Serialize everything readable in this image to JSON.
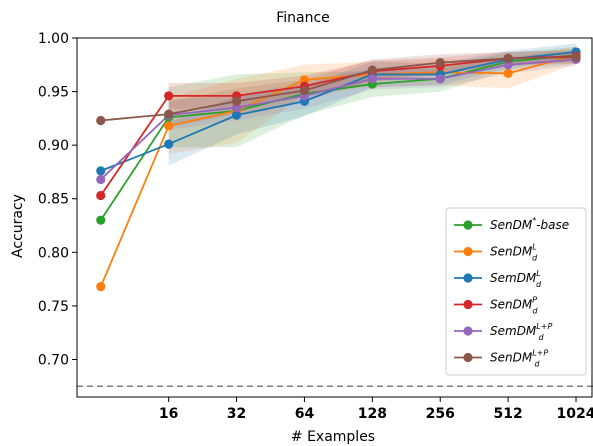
{
  "chart_data": {
    "type": "line",
    "title": "Finance",
    "xlabel": "# Examples",
    "ylabel": "Accuracy",
    "x_scale": "log2",
    "x_ticks": [
      16,
      32,
      64,
      128,
      256,
      512,
      1024
    ],
    "x_tick_labels": [
      "16",
      "32",
      "64",
      "128",
      "256",
      "512",
      "1024"
    ],
    "ylim": [
      0.665,
      1.0
    ],
    "y_ticks": [
      0.7,
      0.75,
      0.8,
      0.85,
      0.9,
      0.95,
      1.0
    ],
    "y_tick_labels": [
      "0.70",
      "0.75",
      "0.80",
      "0.85",
      "0.90",
      "0.95",
      "1.00"
    ],
    "baseline": 0.675,
    "legend_position": "bottom-right",
    "grid": false,
    "x": [
      8,
      16,
      32,
      64,
      128,
      256,
      512,
      1024
    ],
    "series": [
      {
        "name": "SenDM*-base",
        "legend_main": "SenDM",
        "legend_sup": "*",
        "legend_sub": "",
        "legend_tail": "-base",
        "color": "#2ca02c",
        "values": [
          0.83,
          0.926,
          0.932,
          0.948,
          0.957,
          0.962,
          0.978,
          0.984
        ],
        "band": [
          0.028,
          0.034,
          0.02,
          0.012,
          0.012,
          0.008,
          0.008
        ]
      },
      {
        "name": "SenDM_d^Ld",
        "legend_main": "SenDM",
        "legend_sup": "L",
        "legend_sub": "d",
        "legend_tail": "",
        "color": "#ff7f0e",
        "values": [
          0.768,
          0.918,
          0.932,
          0.961,
          0.966,
          0.968,
          0.967,
          0.984
        ],
        "band": [
          0.026,
          0.03,
          0.014,
          0.012,
          0.012,
          0.014,
          0.008
        ]
      },
      {
        "name": "SemDM_d^Ld",
        "legend_main": "SemDM",
        "legend_sup": "L",
        "legend_sub": "d",
        "legend_tail": "",
        "color": "#1f77b4",
        "values": [
          0.876,
          0.901,
          0.928,
          0.941,
          0.966,
          0.966,
          0.98,
          0.987
        ],
        "band": [
          0.02,
          0.018,
          0.014,
          0.012,
          0.01,
          0.008,
          0.008
        ]
      },
      {
        "name": "SenDM_d^P",
        "legend_main": "SenDM",
        "legend_sup": "P",
        "legend_sub": "d",
        "legend_tail": "",
        "color": "#d62728",
        "values": [
          0.853,
          0.946,
          0.946,
          0.955,
          0.969,
          0.974,
          0.981,
          0.983
        ],
        "band": [
          0.012,
          0.012,
          0.01,
          0.01,
          0.008,
          0.006,
          0.006
        ]
      },
      {
        "name": "SemDM_d^Ld+P",
        "legend_main": "SemDM",
        "legend_sup": "L+P",
        "legend_sub": "d",
        "legend_tail": "",
        "color": "#9467bd",
        "values": [
          0.868,
          0.928,
          0.935,
          0.946,
          0.962,
          0.962,
          0.975,
          0.98
        ],
        "band": [
          0.014,
          0.012,
          0.012,
          0.01,
          0.008,
          0.008,
          0.006
        ]
      },
      {
        "name": "SenDM_d^Ld+P",
        "legend_main": "SenDM",
        "legend_sup": "L+P",
        "legend_sub": "d",
        "legend_tail": "",
        "color": "#8c564b",
        "values": [
          0.923,
          0.929,
          0.941,
          0.951,
          0.97,
          0.977,
          0.981,
          0.982
        ],
        "band": [
          0.012,
          0.012,
          0.01,
          0.01,
          0.008,
          0.006,
          0.006
        ]
      }
    ]
  }
}
